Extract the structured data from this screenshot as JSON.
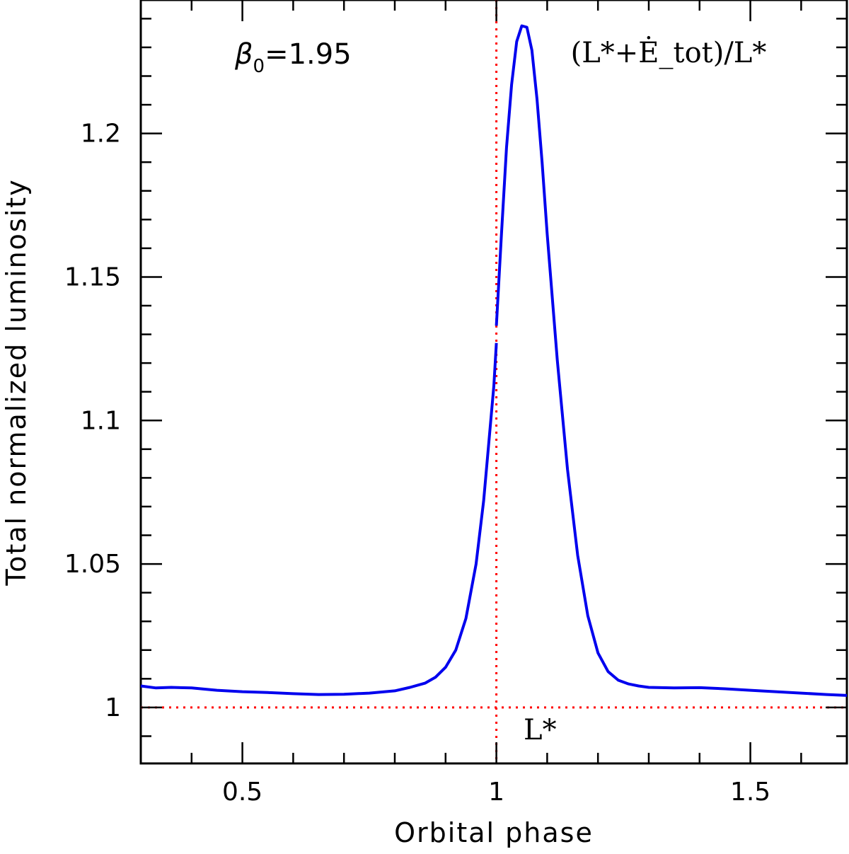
{
  "chart_data": {
    "type": "line",
    "xlabel": "Orbital phase",
    "ylabel": "Total normalized luminosity",
    "xlim": [
      0.3,
      1.69
    ],
    "ylim": [
      0.9805,
      1.2465
    ],
    "xticks": {
      "major": [
        0.5,
        1,
        1.5
      ],
      "major_labels": [
        "0.5",
        "1",
        "1.5"
      ],
      "minor_step": 0.1
    },
    "yticks": {
      "major": [
        1,
        1.05,
        1.1,
        1.15,
        1.2
      ],
      "major_labels": [
        "1",
        "1.05",
        "1.1",
        "1.15",
        "1.2"
      ],
      "minor_step": 0.01
    },
    "grid": false,
    "annotations": {
      "beta": {
        "symbol": "β",
        "subscript": "0",
        "value_text": "=1.95"
      },
      "curve_label": "(L*+Ė_tot)/L*",
      "reference_label": "L*"
    },
    "reference_lines": {
      "vertical_x": 1.0,
      "horizontal_y": 1.0,
      "color": "#ff0000",
      "style": "dotted"
    },
    "series": [
      {
        "color": "#0000ee",
        "segments": [
          {
            "x": [
              0.3,
              0.33,
              0.36,
              0.4,
              0.45,
              0.5,
              0.55,
              0.6,
              0.65,
              0.7,
              0.75,
              0.8,
              0.83,
              0.86,
              0.88,
              0.9,
              0.92,
              0.94,
              0.96,
              0.975,
              0.985,
              0.995,
              1.0
            ],
            "y": [
              1.0075,
              1.0068,
              1.007,
              1.0068,
              1.006,
              1.0055,
              1.0052,
              1.0048,
              1.0045,
              1.0046,
              1.005,
              1.0058,
              1.007,
              1.0085,
              1.0105,
              1.014,
              1.02,
              1.031,
              1.05,
              1.072,
              1.092,
              1.112,
              1.127
            ]
          },
          {
            "x": [
              1.0,
              1.01,
              1.02,
              1.03,
              1.04,
              1.05,
              1.06,
              1.07,
              1.08,
              1.09,
              1.1,
              1.12,
              1.14,
              1.16,
              1.18,
              1.2,
              1.22,
              1.24,
              1.26,
              1.28,
              1.3,
              1.35,
              1.4,
              1.45,
              1.5,
              1.55,
              1.6,
              1.65,
              1.69
            ],
            "y": [
              1.133,
              1.165,
              1.195,
              1.217,
              1.232,
              1.2375,
              1.237,
              1.229,
              1.212,
              1.19,
              1.165,
              1.121,
              1.083,
              1.053,
              1.032,
              1.019,
              1.0125,
              1.0095,
              1.0082,
              1.0075,
              1.007,
              1.0068,
              1.0069,
              1.0065,
              1.006,
              1.0055,
              1.005,
              1.0045,
              1.0042
            ]
          }
        ]
      }
    ]
  }
}
